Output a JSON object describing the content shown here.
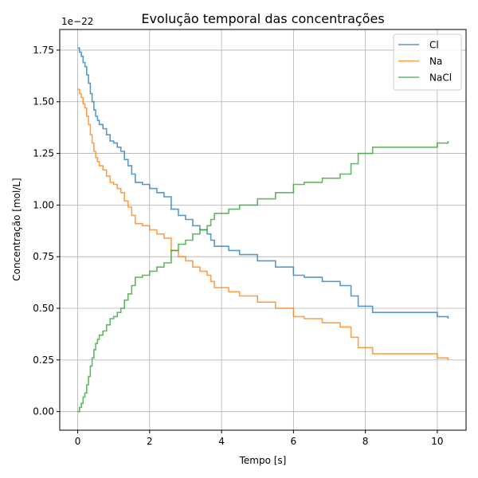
{
  "chart_data": {
    "type": "line",
    "title": "Evolução temporal das concentrações",
    "xlabel": "Tempo [s]",
    "ylabel": "Concentração [mol/L]",
    "y_multiplier": "1e−22",
    "xlim": [
      -0.5,
      10.8
    ],
    "ylim": [
      -0.09,
      1.85
    ],
    "x_ticks": [
      0,
      2,
      4,
      6,
      8,
      10
    ],
    "x_tick_labels": [
      "0",
      "2",
      "4",
      "6",
      "8",
      "10"
    ],
    "y_ticks": [
      0.0,
      0.25,
      0.5,
      0.75,
      1.0,
      1.25,
      1.5,
      1.75
    ],
    "y_tick_labels": [
      "0.00",
      "0.25",
      "0.50",
      "0.75",
      "1.00",
      "1.25",
      "1.50",
      "1.75"
    ],
    "grid": true,
    "legend_position": "top-right",
    "series": [
      {
        "name": "Cl",
        "color": "#1f77b4",
        "x": [
          0.0,
          0.05,
          0.1,
          0.15,
          0.2,
          0.25,
          0.3,
          0.35,
          0.4,
          0.45,
          0.5,
          0.55,
          0.6,
          0.7,
          0.8,
          0.9,
          1.0,
          1.1,
          1.2,
          1.3,
          1.4,
          1.5,
          1.6,
          1.8,
          2.0,
          2.2,
          2.4,
          2.6,
          2.8,
          3.0,
          3.2,
          3.4,
          3.6,
          3.7,
          3.8,
          4.2,
          4.5,
          5.0,
          5.5,
          6.0,
          6.3,
          6.8,
          7.3,
          7.6,
          7.8,
          8.2,
          10.0,
          10.3
        ],
        "y": [
          1.76,
          1.74,
          1.72,
          1.69,
          1.67,
          1.63,
          1.59,
          1.54,
          1.5,
          1.46,
          1.43,
          1.41,
          1.39,
          1.37,
          1.34,
          1.31,
          1.3,
          1.28,
          1.26,
          1.22,
          1.19,
          1.15,
          1.11,
          1.1,
          1.08,
          1.06,
          1.04,
          0.98,
          0.95,
          0.93,
          0.9,
          0.88,
          0.86,
          0.83,
          0.8,
          0.78,
          0.76,
          0.73,
          0.7,
          0.66,
          0.65,
          0.63,
          0.61,
          0.56,
          0.51,
          0.48,
          0.46,
          0.45
        ]
      },
      {
        "name": "Na",
        "color": "#ff7f0e",
        "x": [
          0.0,
          0.05,
          0.1,
          0.15,
          0.2,
          0.25,
          0.3,
          0.35,
          0.4,
          0.45,
          0.5,
          0.55,
          0.6,
          0.7,
          0.8,
          0.9,
          1.0,
          1.1,
          1.2,
          1.3,
          1.4,
          1.5,
          1.6,
          1.8,
          2.0,
          2.2,
          2.4,
          2.6,
          2.8,
          3.0,
          3.2,
          3.4,
          3.6,
          3.7,
          3.8,
          4.2,
          4.5,
          5.0,
          5.5,
          6.0,
          6.3,
          6.8,
          7.3,
          7.6,
          7.8,
          8.2,
          10.0,
          10.3
        ],
        "y": [
          1.56,
          1.54,
          1.52,
          1.49,
          1.47,
          1.43,
          1.39,
          1.34,
          1.3,
          1.26,
          1.23,
          1.21,
          1.19,
          1.17,
          1.14,
          1.11,
          1.1,
          1.08,
          1.06,
          1.02,
          0.99,
          0.95,
          0.91,
          0.9,
          0.88,
          0.86,
          0.84,
          0.78,
          0.75,
          0.73,
          0.7,
          0.68,
          0.66,
          0.63,
          0.6,
          0.58,
          0.56,
          0.53,
          0.5,
          0.46,
          0.45,
          0.43,
          0.41,
          0.36,
          0.31,
          0.28,
          0.26,
          0.25
        ]
      },
      {
        "name": "NaCl",
        "color": "#2ca02c",
        "x": [
          0.0,
          0.05,
          0.1,
          0.15,
          0.2,
          0.25,
          0.3,
          0.35,
          0.4,
          0.45,
          0.5,
          0.55,
          0.6,
          0.7,
          0.8,
          0.9,
          1.0,
          1.1,
          1.2,
          1.3,
          1.4,
          1.5,
          1.6,
          1.8,
          2.0,
          2.2,
          2.4,
          2.6,
          2.8,
          3.0,
          3.2,
          3.4,
          3.6,
          3.7,
          3.8,
          4.2,
          4.5,
          5.0,
          5.5,
          6.0,
          6.3,
          6.8,
          7.3,
          7.6,
          7.8,
          8.2,
          10.0,
          10.3
        ],
        "y": [
          0.0,
          0.02,
          0.04,
          0.07,
          0.09,
          0.13,
          0.17,
          0.22,
          0.26,
          0.3,
          0.33,
          0.35,
          0.37,
          0.39,
          0.42,
          0.45,
          0.46,
          0.48,
          0.5,
          0.54,
          0.57,
          0.61,
          0.65,
          0.66,
          0.68,
          0.7,
          0.72,
          0.78,
          0.81,
          0.83,
          0.86,
          0.88,
          0.9,
          0.93,
          0.96,
          0.98,
          1.0,
          1.03,
          1.06,
          1.1,
          1.11,
          1.13,
          1.15,
          1.2,
          1.25,
          1.28,
          1.3,
          1.31
        ]
      }
    ]
  }
}
